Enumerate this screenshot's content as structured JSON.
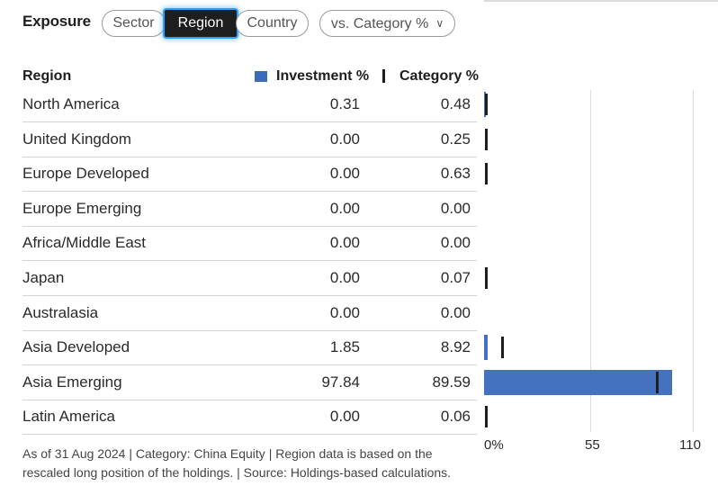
{
  "header": {
    "title": "Exposure",
    "tabs": [
      {
        "label": "Sector",
        "active": false
      },
      {
        "label": "Region",
        "active": true
      },
      {
        "label": "Country",
        "active": false
      }
    ],
    "comparison_dropdown": {
      "label": "vs. Category %",
      "icon": "chevron-down-icon"
    }
  },
  "table": {
    "col_region": "Region",
    "col_investment": "Investment %",
    "col_category": "Category %"
  },
  "colors": {
    "investment": "#4472be",
    "category": "#1e1e1e"
  },
  "chart_data": {
    "type": "bar",
    "categories": [
      "North America",
      "United Kingdom",
      "Europe Developed",
      "Europe Emerging",
      "Africa/Middle East",
      "Japan",
      "Australasia",
      "Asia Developed",
      "Asia Emerging",
      "Latin America"
    ],
    "series": [
      {
        "name": "Investment %",
        "values": [
          0.31,
          0.0,
          0.0,
          0.0,
          0.0,
          0.0,
          0.0,
          1.85,
          97.84,
          0.0
        ]
      },
      {
        "name": "Category %",
        "values": [
          0.48,
          0.25,
          0.63,
          0.0,
          0.0,
          0.07,
          0.0,
          8.92,
          89.59,
          0.06
        ]
      }
    ],
    "display_values": {
      "investment": [
        "0.31",
        "0.00",
        "0.00",
        "0.00",
        "0.00",
        "0.00",
        "0.00",
        "1.85",
        "97.84",
        "0.00"
      ],
      "category": [
        "0.48",
        "0.25",
        "0.63",
        "0.00",
        "0.00",
        "0.07",
        "0.00",
        "8.92",
        "89.59",
        "0.06"
      ]
    },
    "xlim": [
      0,
      110
    ],
    "xticks": [
      "0%",
      "55",
      "110"
    ],
    "orientation": "horizontal",
    "grid": true
  },
  "footnote": "As of 31 Aug 2024 | Category: China Equity | Region data is based on the rescaled long position of the holdings. | Source: Holdings-based calculations."
}
